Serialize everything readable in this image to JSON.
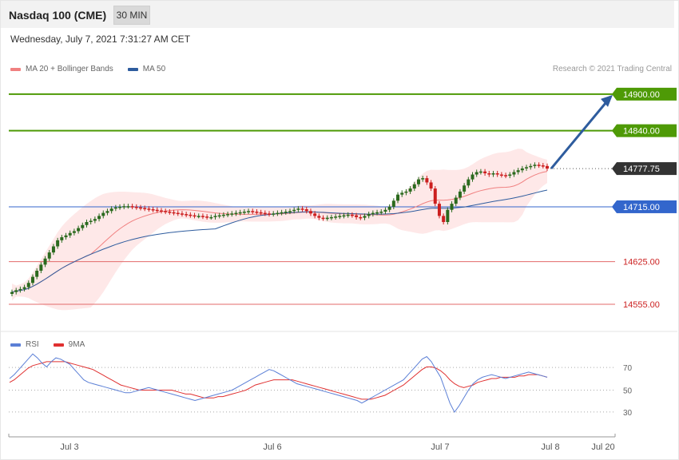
{
  "header": {
    "title": "Nasdaq 100 (CME)",
    "timeframe": "30 MIN"
  },
  "datetime": "Wednesday, July 7, 2021 7:31:27 AM CET",
  "credit": "Research © 2021 Trading Central",
  "colors": {
    "ma20": "#f08080",
    "band": "#fde0e0",
    "ma50": "#2e5c9e",
    "up": "#2b6a1e",
    "down": "#cc1f1f",
    "green_level": "#4e9a06",
    "blue_level": "#3366cc",
    "red_level": "#e36a6a",
    "arrow": "#2e5c9e",
    "rsi": "#5b7fd6",
    "rsi_ma": "#e03030"
  },
  "chart_data": [
    {
      "type": "line",
      "panel": "price",
      "legend": [
        "MA 20 + Bollinger Bands",
        "MA 50"
      ],
      "ylim": [
        14530,
        14930
      ],
      "x_labels": [
        "Jul 3",
        "Jul 6",
        "Jul 7",
        "Jul 8",
        "Jul 20"
      ],
      "current_price": {
        "label": "14777.75",
        "value": 14777.75
      },
      "levels": [
        {
          "label": "14900.00",
          "value": 14900,
          "kind": "resistance"
        },
        {
          "label": "14840.00",
          "value": 14840,
          "kind": "resistance"
        },
        {
          "label": "14715.00",
          "value": 14715,
          "kind": "pivot"
        },
        {
          "label": "14625.00",
          "value": 14625,
          "kind": "support"
        },
        {
          "label": "14555.00",
          "value": 14555,
          "kind": "support"
        }
      ],
      "candles_close": [
        14575,
        14578,
        14580,
        14583,
        14590,
        14600,
        14610,
        14620,
        14630,
        14640,
        14650,
        14660,
        14665,
        14668,
        14672,
        14675,
        14680,
        14685,
        14690,
        14692,
        14695,
        14700,
        14705,
        14708,
        14712,
        14714,
        14715,
        14716,
        14716,
        14715,
        14714,
        14713,
        14712,
        14711,
        14710,
        14709,
        14708,
        14707,
        14706,
        14705,
        14704,
        14703,
        14702,
        14701,
        14700,
        14700,
        14699,
        14698,
        14698,
        14700,
        14701,
        14702,
        14703,
        14704,
        14705,
        14706,
        14707,
        14708,
        14707,
        14706,
        14705,
        14704,
        14703,
        14704,
        14705,
        14706,
        14707,
        14708,
        14710,
        14712,
        14711,
        14708,
        14704,
        14700,
        14697,
        14696,
        14697,
        14698,
        14699,
        14700,
        14701,
        14702,
        14701,
        14698,
        14697,
        14700,
        14703,
        14705,
        14706,
        14707,
        14710,
        14715,
        14725,
        14735,
        14738,
        14740,
        14745,
        14752,
        14760,
        14762,
        14755,
        14745,
        14720,
        14700,
        14690,
        14710,
        14720,
        14730,
        14740,
        14750,
        14760,
        14768,
        14772,
        14773,
        14770,
        14768,
        14770,
        14768,
        14767,
        14766,
        14768,
        14772,
        14775,
        14778,
        14780,
        14782,
        14784,
        14783,
        14782,
        14777.75
      ],
      "rsi": {
        "legend": [
          "RSI",
          "9MA"
        ],
        "ticks": [
          70,
          50,
          30
        ],
        "values": [
          59,
          62,
          66,
          70,
          74,
          78,
          75,
          71,
          68,
          72,
          75,
          74,
          72,
          70,
          66,
          62,
          58,
          56,
          55,
          54,
          53,
          52,
          51,
          50,
          49,
          48,
          48,
          49,
          50,
          51,
          52,
          51,
          50,
          49,
          48,
          47,
          46,
          45,
          44,
          43,
          42,
          43,
          44,
          45,
          46,
          47,
          48,
          49,
          50,
          52,
          54,
          56,
          58,
          60,
          62,
          64,
          66,
          65,
          63,
          61,
          59,
          57,
          55,
          54,
          53,
          52,
          51,
          50,
          49,
          48,
          47,
          46,
          45,
          44,
          43,
          42,
          40,
          42,
          44,
          46,
          48,
          50,
          52,
          54,
          56,
          58,
          62,
          66,
          70,
          74,
          76,
          72,
          66,
          60,
          50,
          40,
          33,
          38,
          44,
          50,
          55,
          58,
          60,
          61,
          62,
          61,
          60,
          59,
          60,
          61,
          62,
          63,
          64,
          63,
          62,
          61,
          60
        ],
        "ma9": [
          56,
          58,
          61,
          64,
          67,
          69,
          70,
          71,
          72,
          72,
          72,
          72,
          72,
          71,
          70,
          69,
          68,
          67,
          66,
          64,
          62,
          60,
          58,
          56,
          54,
          53,
          52,
          51,
          50,
          50,
          50,
          50,
          50,
          50,
          50,
          50,
          49,
          48,
          47,
          47,
          46,
          45,
          44,
          44,
          44,
          45,
          45,
          46,
          47,
          48,
          49,
          50,
          52,
          54,
          55,
          56,
          57,
          58,
          58,
          58,
          58,
          58,
          57,
          56,
          55,
          54,
          53,
          52,
          51,
          50,
          49,
          48,
          47,
          46,
          45,
          44,
          43,
          43,
          43,
          44,
          45,
          46,
          48,
          50,
          52,
          54,
          57,
          60,
          63,
          66,
          68,
          68,
          67,
          65,
          62,
          58,
          55,
          53,
          52,
          53,
          54,
          56,
          57,
          58,
          59,
          59,
          60,
          60,
          60,
          60,
          61,
          61,
          62,
          62,
          62,
          61,
          60
        ]
      }
    }
  ]
}
